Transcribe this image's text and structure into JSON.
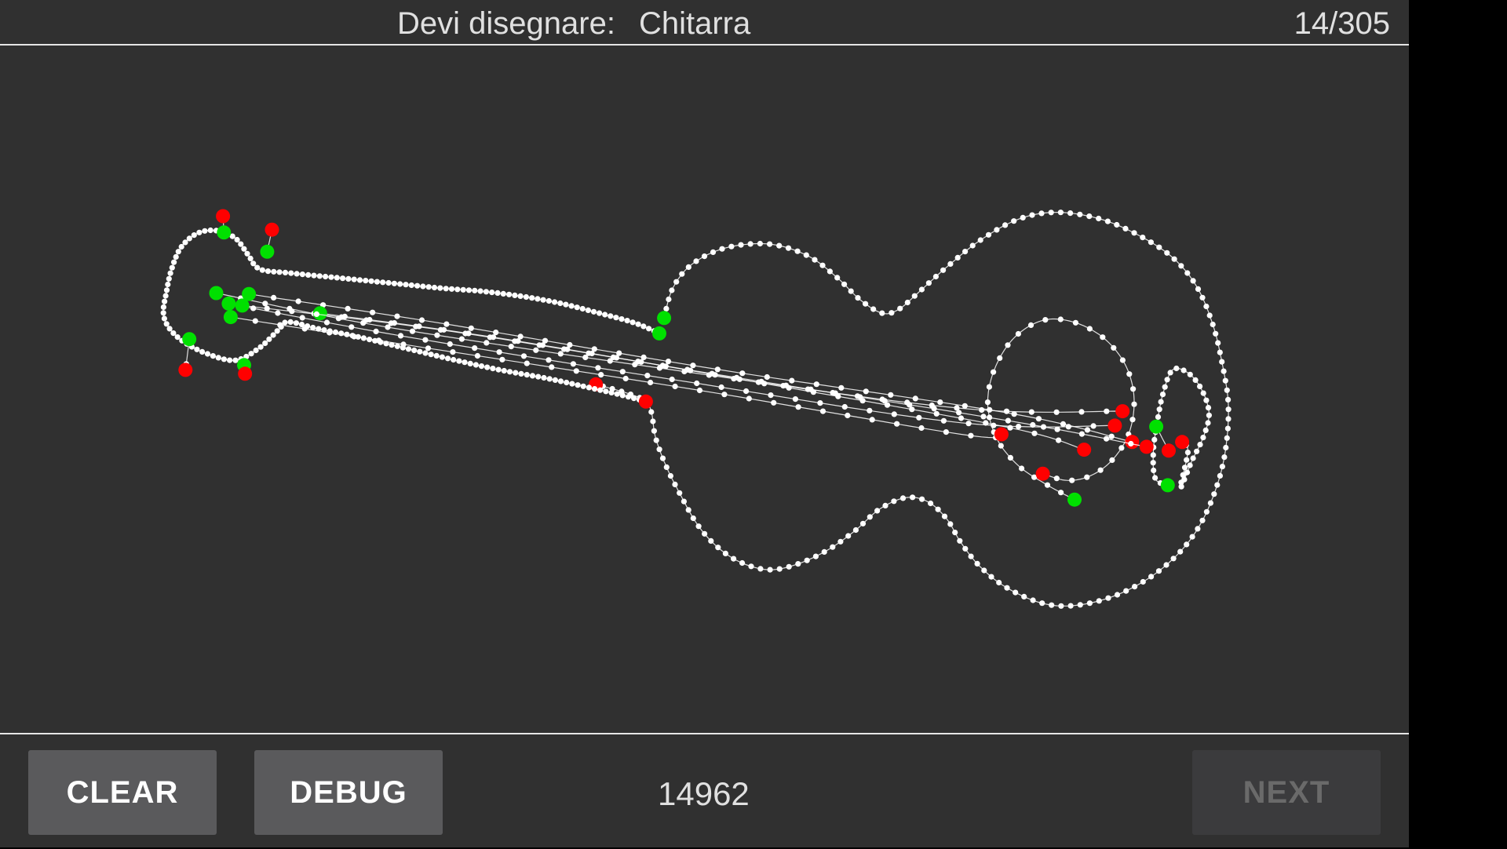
{
  "header": {
    "prompt_label": "Devi disegnare:",
    "prompt_word": "Chitarra",
    "counter": "14/305"
  },
  "footer": {
    "clear_label": "CLEAR",
    "debug_label": "DEBUG",
    "score": "14962",
    "next_label": "NEXT"
  },
  "colors": {
    "background": "#303030",
    "stroke": "#ffffff",
    "stroke_start": "#00e000",
    "stroke_end": "#ff0000"
  }
}
